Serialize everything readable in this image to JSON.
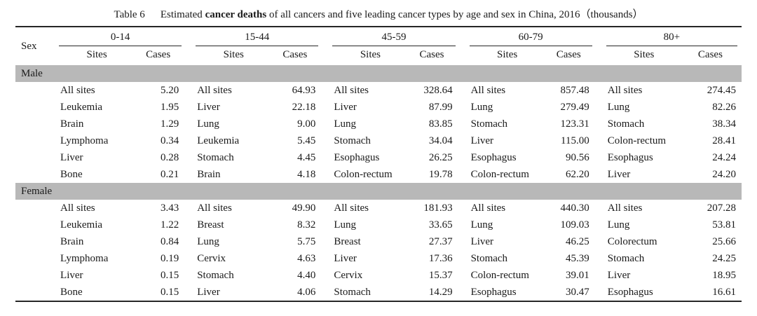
{
  "title": {
    "label": "Table 6",
    "text_before_bold": "Estimated ",
    "bold_text": "cancer deaths",
    "text_after_bold": " of all cancers and five leading cancer types by age and sex in China, 2016（thousands）"
  },
  "header": {
    "sex_label": "Sex",
    "age_groups": [
      "0-14",
      "15-44",
      "45-59",
      "60-79",
      "80+"
    ],
    "sites_label": "Sites",
    "cases_label": "Cases"
  },
  "sections": [
    {
      "sex": "Male",
      "rows": [
        [
          {
            "site": "All sites",
            "cases": "5.20"
          },
          {
            "site": "All sites",
            "cases": "64.93"
          },
          {
            "site": "All sites",
            "cases": "328.64"
          },
          {
            "site": "All sites",
            "cases": "857.48"
          },
          {
            "site": "All sites",
            "cases": "274.45"
          }
        ],
        [
          {
            "site": "Leukemia",
            "cases": "1.95"
          },
          {
            "site": "Liver",
            "cases": "22.18"
          },
          {
            "site": "Liver",
            "cases": "87.99"
          },
          {
            "site": "Lung",
            "cases": "279.49"
          },
          {
            "site": "Lung",
            "cases": "82.26"
          }
        ],
        [
          {
            "site": "Brain",
            "cases": "1.29"
          },
          {
            "site": "Lung",
            "cases": "9.00"
          },
          {
            "site": "Lung",
            "cases": "83.85"
          },
          {
            "site": "Stomach",
            "cases": "123.31"
          },
          {
            "site": "Stomach",
            "cases": "38.34"
          }
        ],
        [
          {
            "site": "Lymphoma",
            "cases": "0.34"
          },
          {
            "site": "Leukemia",
            "cases": "5.45"
          },
          {
            "site": "Stomach",
            "cases": "34.04"
          },
          {
            "site": "Liver",
            "cases": "115.00"
          },
          {
            "site": "Colon-rectum",
            "cases": "28.41"
          }
        ],
        [
          {
            "site": "Liver",
            "cases": "0.28"
          },
          {
            "site": "Stomach",
            "cases": "4.45"
          },
          {
            "site": "Esophagus",
            "cases": "26.25"
          },
          {
            "site": "Esophagus",
            "cases": "90.56"
          },
          {
            "site": "Esophagus",
            "cases": "24.24"
          }
        ],
        [
          {
            "site": "Bone",
            "cases": "0.21"
          },
          {
            "site": "Brain",
            "cases": "4.18"
          },
          {
            "site": "Colon-rectum",
            "cases": "19.78"
          },
          {
            "site": "Colon-rectum",
            "cases": "62.20"
          },
          {
            "site": "Liver",
            "cases": "24.20"
          }
        ]
      ]
    },
    {
      "sex": "Female",
      "rows": [
        [
          {
            "site": "All sites",
            "cases": "3.43"
          },
          {
            "site": "All sites",
            "cases": "49.90"
          },
          {
            "site": "All sites",
            "cases": "181.93"
          },
          {
            "site": "All sites",
            "cases": "440.30"
          },
          {
            "site": "All sites",
            "cases": "207.28"
          }
        ],
        [
          {
            "site": "Leukemia",
            "cases": "1.22"
          },
          {
            "site": "Breast",
            "cases": "8.32"
          },
          {
            "site": "Lung",
            "cases": "33.65"
          },
          {
            "site": "Lung",
            "cases": "109.03"
          },
          {
            "site": "Lung",
            "cases": "53.81"
          }
        ],
        [
          {
            "site": "Brain",
            "cases": "0.84"
          },
          {
            "site": "Lung",
            "cases": "5.75"
          },
          {
            "site": "Breast",
            "cases": "27.37"
          },
          {
            "site": "Liver",
            "cases": "46.25"
          },
          {
            "site": "Colorectum",
            "cases": "25.66"
          }
        ],
        [
          {
            "site": "Lymphoma",
            "cases": "0.19"
          },
          {
            "site": "Cervix",
            "cases": "4.63"
          },
          {
            "site": "Liver",
            "cases": "17.36"
          },
          {
            "site": "Stomach",
            "cases": "45.39"
          },
          {
            "site": "Stomach",
            "cases": "24.25"
          }
        ],
        [
          {
            "site": "Liver",
            "cases": "0.15"
          },
          {
            "site": "Stomach",
            "cases": "4.40"
          },
          {
            "site": "Cervix",
            "cases": "15.37"
          },
          {
            "site": "Colon-rectum",
            "cases": "39.01"
          },
          {
            "site": "Liver",
            "cases": "18.95"
          }
        ],
        [
          {
            "site": "Bone",
            "cases": "0.15"
          },
          {
            "site": "Liver",
            "cases": "4.06"
          },
          {
            "site": "Stomach",
            "cases": "14.29"
          },
          {
            "site": "Esophagus",
            "cases": "30.47"
          },
          {
            "site": "Esophagus",
            "cases": "16.61"
          }
        ]
      ]
    }
  ],
  "colors": {
    "band_gray": "#b8b8b8",
    "rule_black": "#262626",
    "background": "#ffffff"
  }
}
